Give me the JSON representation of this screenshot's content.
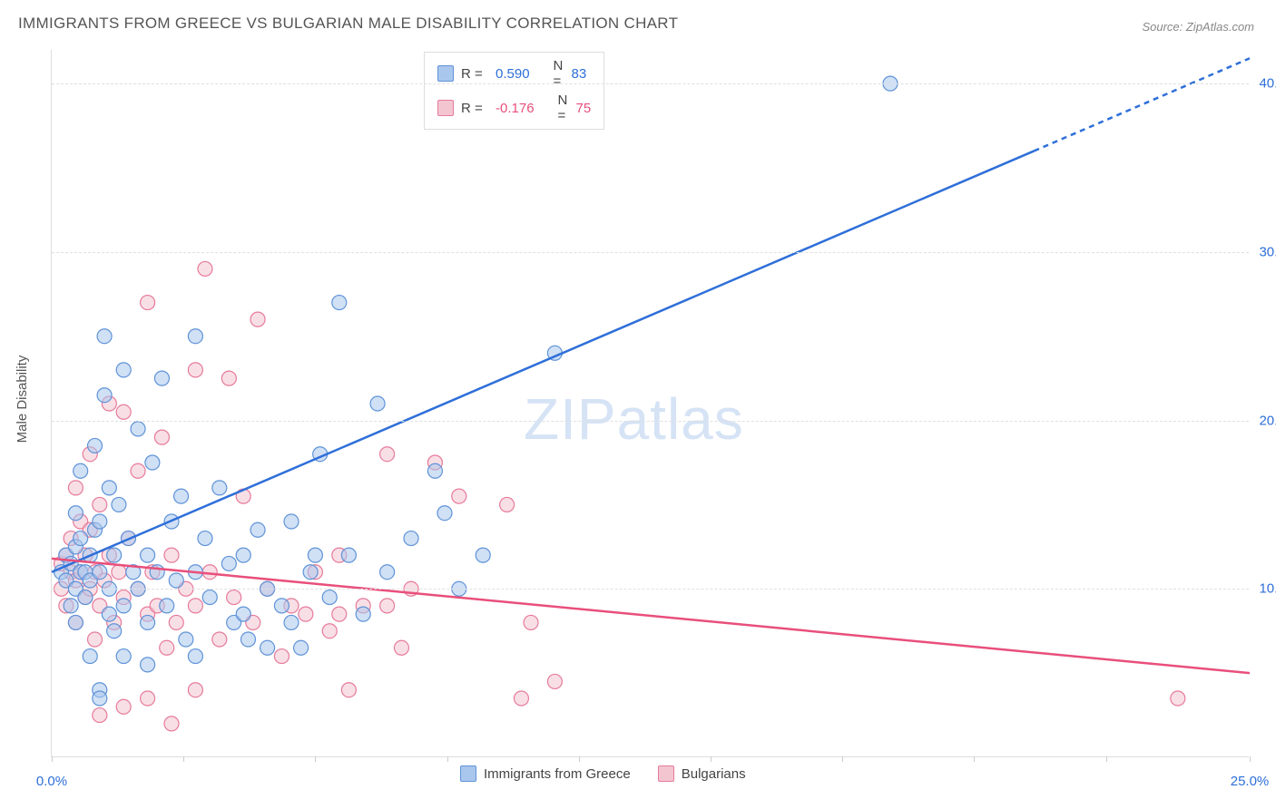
{
  "title": "IMMIGRANTS FROM GREECE VS BULGARIAN MALE DISABILITY CORRELATION CHART",
  "source_label": "Source: ZipAtlas.com",
  "ylabel": "Male Disability",
  "watermark_a": "ZIP",
  "watermark_b": "atlas",
  "chart": {
    "type": "scatter",
    "background_color": "#ffffff",
    "grid_color": "#e0e0e0",
    "axis_color": "#dddddd",
    "tick_label_color": "#2e6fd9",
    "xlim": [
      0,
      25
    ],
    "ylim": [
      0,
      42
    ],
    "ytick_step": 10,
    "yticks": [
      10,
      20,
      30,
      40
    ],
    "ytick_labels": [
      "10.0%",
      "20.0%",
      "30.0%",
      "40.0%"
    ],
    "xtick_positions": [
      0,
      2.75,
      5.5,
      8.25,
      11,
      13.75,
      16.5,
      19.25,
      22,
      25
    ],
    "xtick_labels_shown": {
      "0": "0.0%",
      "25": "25.0%"
    },
    "marker_radius": 8,
    "marker_opacity": 0.55,
    "line_width": 2.5,
    "series": [
      {
        "name": "Immigrants from Greece",
        "legend_label": "Immigrants from Greece",
        "point_fill": "#a9c6ed",
        "point_stroke": "#5f93d8",
        "line_color": "#2e6fd9",
        "r_label": "R =",
        "r_value": "0.590",
        "n_label": "N =",
        "n_value": "83",
        "trend": {
          "x1": 0,
          "y1": 11.0,
          "x2": 20.5,
          "y2": 36.0,
          "dash_x2": 25,
          "dash_y2": 41.5
        },
        "points": [
          [
            0.2,
            11
          ],
          [
            0.3,
            10.5
          ],
          [
            0.3,
            12
          ],
          [
            0.4,
            9
          ],
          [
            0.4,
            11.5
          ],
          [
            0.5,
            8
          ],
          [
            0.5,
            10
          ],
          [
            0.5,
            12.5
          ],
          [
            0.6,
            11
          ],
          [
            0.6,
            13
          ],
          [
            0.7,
            9.5
          ],
          [
            0.7,
            11
          ],
          [
            0.8,
            6
          ],
          [
            0.8,
            10.5
          ],
          [
            0.8,
            12
          ],
          [
            0.9,
            13.5
          ],
          [
            0.9,
            18.5
          ],
          [
            1.0,
            4
          ],
          [
            1.0,
            11
          ],
          [
            1.0,
            14
          ],
          [
            1.1,
            21.5
          ],
          [
            1.1,
            25
          ],
          [
            1.2,
            10
          ],
          [
            1.2,
            16
          ],
          [
            1.3,
            7.5
          ],
          [
            1.3,
            12
          ],
          [
            1.4,
            15
          ],
          [
            1.5,
            9
          ],
          [
            1.5,
            23
          ],
          [
            1.6,
            13
          ],
          [
            1.7,
            11
          ],
          [
            1.8,
            19.5
          ],
          [
            1.8,
            10
          ],
          [
            2.0,
            8
          ],
          [
            2.0,
            12
          ],
          [
            2.1,
            17.5
          ],
          [
            2.2,
            11
          ],
          [
            2.3,
            22.5
          ],
          [
            2.4,
            9
          ],
          [
            2.5,
            14
          ],
          [
            2.6,
            10.5
          ],
          [
            2.7,
            15.5
          ],
          [
            2.8,
            7
          ],
          [
            3.0,
            25
          ],
          [
            3.0,
            11
          ],
          [
            3.2,
            13
          ],
          [
            3.3,
            9.5
          ],
          [
            3.5,
            16
          ],
          [
            3.7,
            11.5
          ],
          [
            3.8,
            8
          ],
          [
            4.0,
            12
          ],
          [
            4.1,
            7
          ],
          [
            4.3,
            13.5
          ],
          [
            4.5,
            10
          ],
          [
            4.8,
            9
          ],
          [
            5.0,
            14
          ],
          [
            5.2,
            6.5
          ],
          [
            5.4,
            11
          ],
          [
            5.6,
            18
          ],
          [
            5.8,
            9.5
          ],
          [
            6.0,
            27
          ],
          [
            6.2,
            12
          ],
          [
            6.5,
            8.5
          ],
          [
            6.8,
            21
          ],
          [
            7.0,
            11
          ],
          [
            7.5,
            13
          ],
          [
            8.0,
            17
          ],
          [
            8.2,
            14.5
          ],
          [
            8.5,
            10
          ],
          [
            9.0,
            12
          ],
          [
            10.5,
            24
          ],
          [
            17.5,
            40
          ],
          [
            1.0,
            3.5
          ],
          [
            1.5,
            6
          ],
          [
            2.0,
            5.5
          ],
          [
            0.5,
            14.5
          ],
          [
            0.6,
            17
          ],
          [
            1.2,
            8.5
          ],
          [
            3.0,
            6
          ],
          [
            4.0,
            8.5
          ],
          [
            4.5,
            6.5
          ],
          [
            5.0,
            8
          ],
          [
            5.5,
            12
          ]
        ]
      },
      {
        "name": "Bulgarians",
        "legend_label": "Bulgarians",
        "point_fill": "#f3c5d1",
        "point_stroke": "#e77a9a",
        "line_color": "#e94f7b",
        "r_label": "R =",
        "r_value": "-0.176",
        "n_label": "N =",
        "n_value": "75",
        "trend": {
          "x1": 0,
          "y1": 11.8,
          "x2": 25,
          "y2": 5.0
        },
        "points": [
          [
            0.2,
            10
          ],
          [
            0.2,
            11.5
          ],
          [
            0.3,
            12
          ],
          [
            0.3,
            9
          ],
          [
            0.4,
            11
          ],
          [
            0.4,
            13
          ],
          [
            0.5,
            10.5
          ],
          [
            0.5,
            8
          ],
          [
            0.6,
            11
          ],
          [
            0.6,
            14
          ],
          [
            0.7,
            9.5
          ],
          [
            0.7,
            12
          ],
          [
            0.8,
            10
          ],
          [
            0.8,
            13.5
          ],
          [
            0.9,
            7
          ],
          [
            0.9,
            11
          ],
          [
            1.0,
            15
          ],
          [
            1.0,
            9
          ],
          [
            1.1,
            10.5
          ],
          [
            1.2,
            12
          ],
          [
            1.3,
            8
          ],
          [
            1.4,
            11
          ],
          [
            1.5,
            20.5
          ],
          [
            1.5,
            9.5
          ],
          [
            1.6,
            13
          ],
          [
            1.8,
            10
          ],
          [
            1.8,
            17
          ],
          [
            2.0,
            27
          ],
          [
            2.0,
            8.5
          ],
          [
            2.1,
            11
          ],
          [
            2.2,
            9
          ],
          [
            2.3,
            19
          ],
          [
            2.4,
            6.5
          ],
          [
            2.5,
            12
          ],
          [
            2.6,
            8
          ],
          [
            2.8,
            10
          ],
          [
            3.0,
            23
          ],
          [
            3.0,
            9
          ],
          [
            3.2,
            29
          ],
          [
            3.3,
            11
          ],
          [
            3.5,
            7
          ],
          [
            3.7,
            22.5
          ],
          [
            3.8,
            9.5
          ],
          [
            4.0,
            15.5
          ],
          [
            4.2,
            8
          ],
          [
            4.3,
            26
          ],
          [
            4.5,
            10
          ],
          [
            4.8,
            6
          ],
          [
            5.0,
            9
          ],
          [
            5.3,
            8.5
          ],
          [
            5.5,
            11
          ],
          [
            5.8,
            7.5
          ],
          [
            6.0,
            12
          ],
          [
            6.2,
            4
          ],
          [
            6.5,
            9
          ],
          [
            7.0,
            18
          ],
          [
            7.3,
            6.5
          ],
          [
            7.5,
            10
          ],
          [
            8.0,
            17.5
          ],
          [
            8.5,
            15.5
          ],
          [
            9.5,
            15
          ],
          [
            9.8,
            3.5
          ],
          [
            10.0,
            8
          ],
          [
            10.5,
            4.5
          ],
          [
            23.5,
            3.5
          ],
          [
            1.0,
            2.5
          ],
          [
            1.5,
            3
          ],
          [
            2.0,
            3.5
          ],
          [
            2.5,
            2
          ],
          [
            3.0,
            4
          ],
          [
            0.5,
            16
          ],
          [
            0.8,
            18
          ],
          [
            1.2,
            21
          ],
          [
            6.0,
            8.5
          ],
          [
            7.0,
            9
          ]
        ]
      }
    ]
  }
}
